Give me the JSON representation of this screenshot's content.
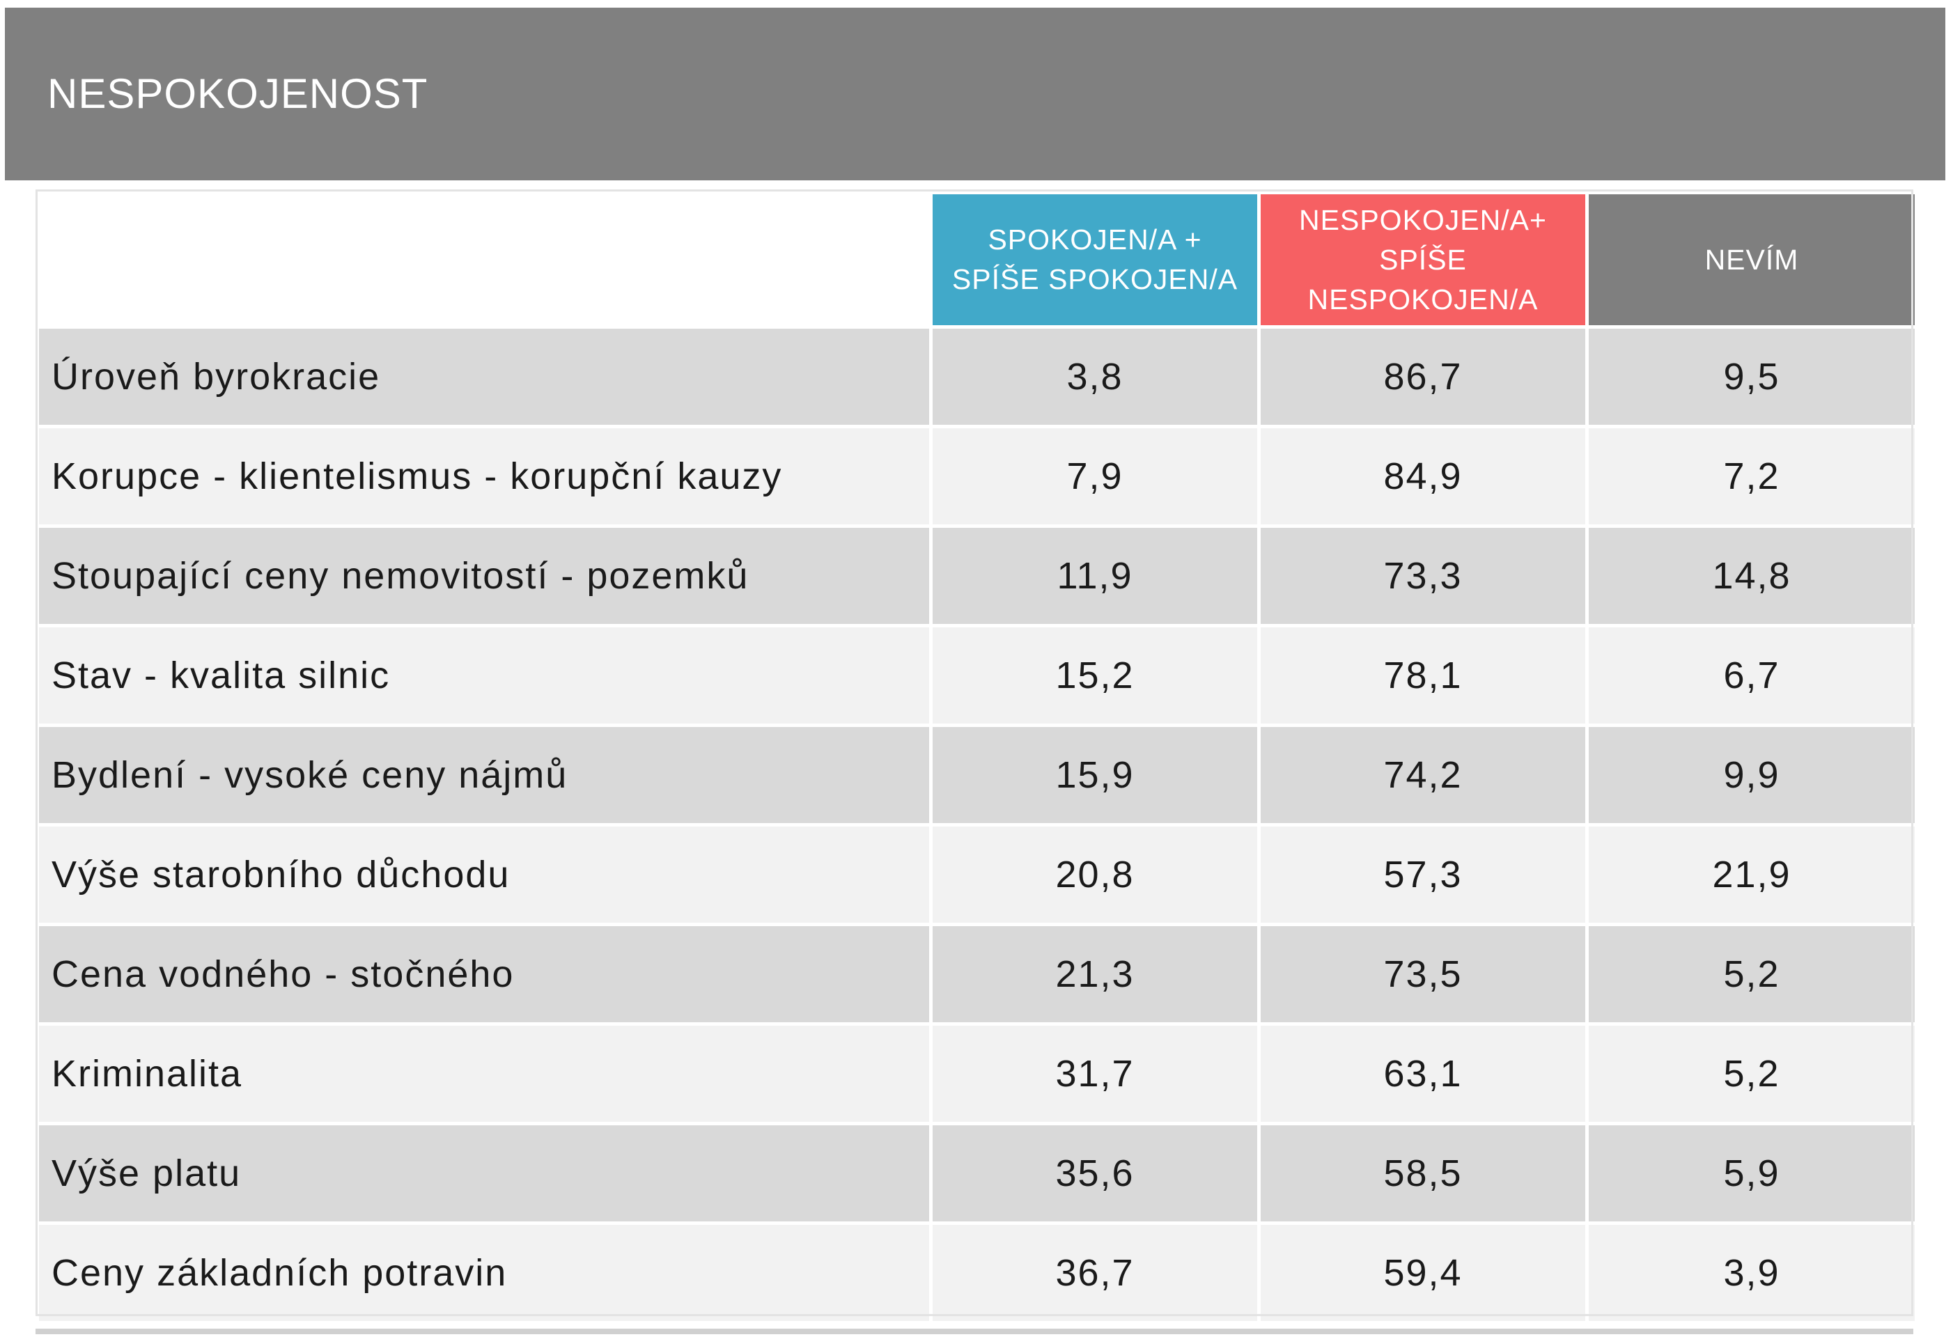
{
  "header": {
    "title": "NESPOKOJENOST"
  },
  "table": {
    "columns": [
      "SPOKOJEN/A + SPÍŠE SPOKOJEN/A",
      "NESPOKOJEN/A+ SPÍŠE NESPOKOJEN/A",
      "NEVÍM"
    ],
    "rows": [
      [
        "Úroveň byrokracie",
        "3,8",
        "86,7",
        "9,5"
      ],
      [
        "Korupce - klientelismus - korupční kauzy",
        "7,9",
        "84,9",
        "7,2"
      ],
      [
        "Stoupající ceny nemovitostí - pozemků",
        "11,9",
        "73,3",
        "14,8"
      ],
      [
        "Stav - kvalita silnic",
        "15,2",
        "78,1",
        "6,7"
      ],
      [
        "Bydlení - vysoké ceny nájmů",
        "15,9",
        "74,2",
        "9,9"
      ],
      [
        "Výše starobního důchodu",
        "20,8",
        "57,3",
        "21,9"
      ],
      [
        "Cena vodného - stočného",
        "21,3",
        "73,5",
        "5,2"
      ],
      [
        "Kriminalita",
        "31,7",
        "63,1",
        "5,2"
      ],
      [
        "Výše platu",
        "35,6",
        "58,5",
        "5,9"
      ],
      [
        "Ceny základních potravin",
        "36,7",
        "59,4",
        "3,9"
      ]
    ]
  }
}
